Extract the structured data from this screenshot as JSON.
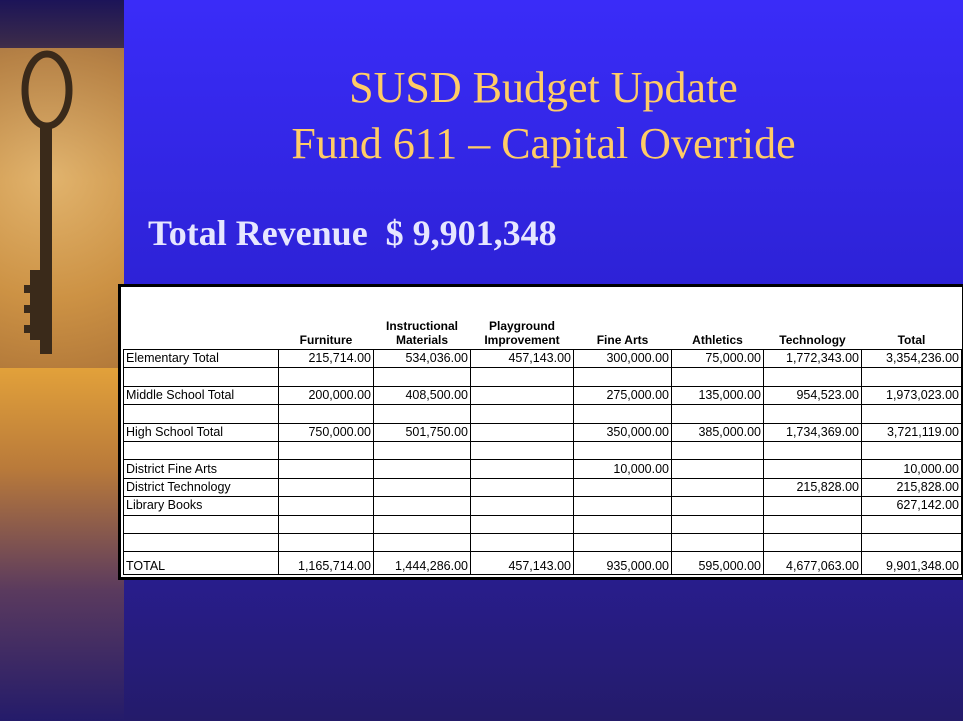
{
  "header": {
    "title_line_1": "SUSD Budget Update",
    "title_line_2": "Fund 611 – Capital Override",
    "subtitle": "Total Revenue  $ 9,901,348"
  },
  "table": {
    "columns": [
      null,
      "Furniture",
      "Instructional Materials",
      "Playground Improvement",
      "Fine Arts",
      "Athletics",
      "Technology",
      "Total"
    ],
    "rows": [
      [
        "Elementary Total",
        "215,714.00",
        "534,036.00",
        "457,143.00",
        "300,000.00",
        "75,000.00",
        "1,772,343.00",
        "3,354,236.00"
      ],
      [
        null,
        null,
        null,
        null,
        null,
        null,
        null,
        null
      ],
      [
        "Middle School Total",
        "200,000.00",
        "408,500.00",
        null,
        "275,000.00",
        "135,000.00",
        "954,523.00",
        "1,973,023.00"
      ],
      [
        null,
        null,
        null,
        null,
        null,
        null,
        null,
        null
      ],
      [
        "High School Total",
        "750,000.00",
        "501,750.00",
        null,
        "350,000.00",
        "385,000.00",
        "1,734,369.00",
        "3,721,119.00"
      ],
      [
        null,
        null,
        null,
        null,
        null,
        null,
        null,
        null
      ],
      [
        "District Fine Arts",
        null,
        null,
        null,
        "10,000.00",
        null,
        null,
        "10,000.00"
      ],
      [
        "District Technology",
        null,
        null,
        null,
        null,
        null,
        "215,828.00",
        "215,828.00"
      ],
      [
        "Library Books",
        null,
        null,
        null,
        null,
        null,
        null,
        "627,142.00"
      ],
      [
        null,
        null,
        null,
        null,
        null,
        null,
        null,
        null
      ],
      [
        null,
        null,
        null,
        null,
        null,
        null,
        null,
        null
      ],
      [
        "TOTAL",
        "1,165,714.00",
        "1,444,286.00",
        "457,143.00",
        "935,000.00",
        "595,000.00",
        "4,677,063.00",
        "9,901,348.00"
      ]
    ]
  }
}
